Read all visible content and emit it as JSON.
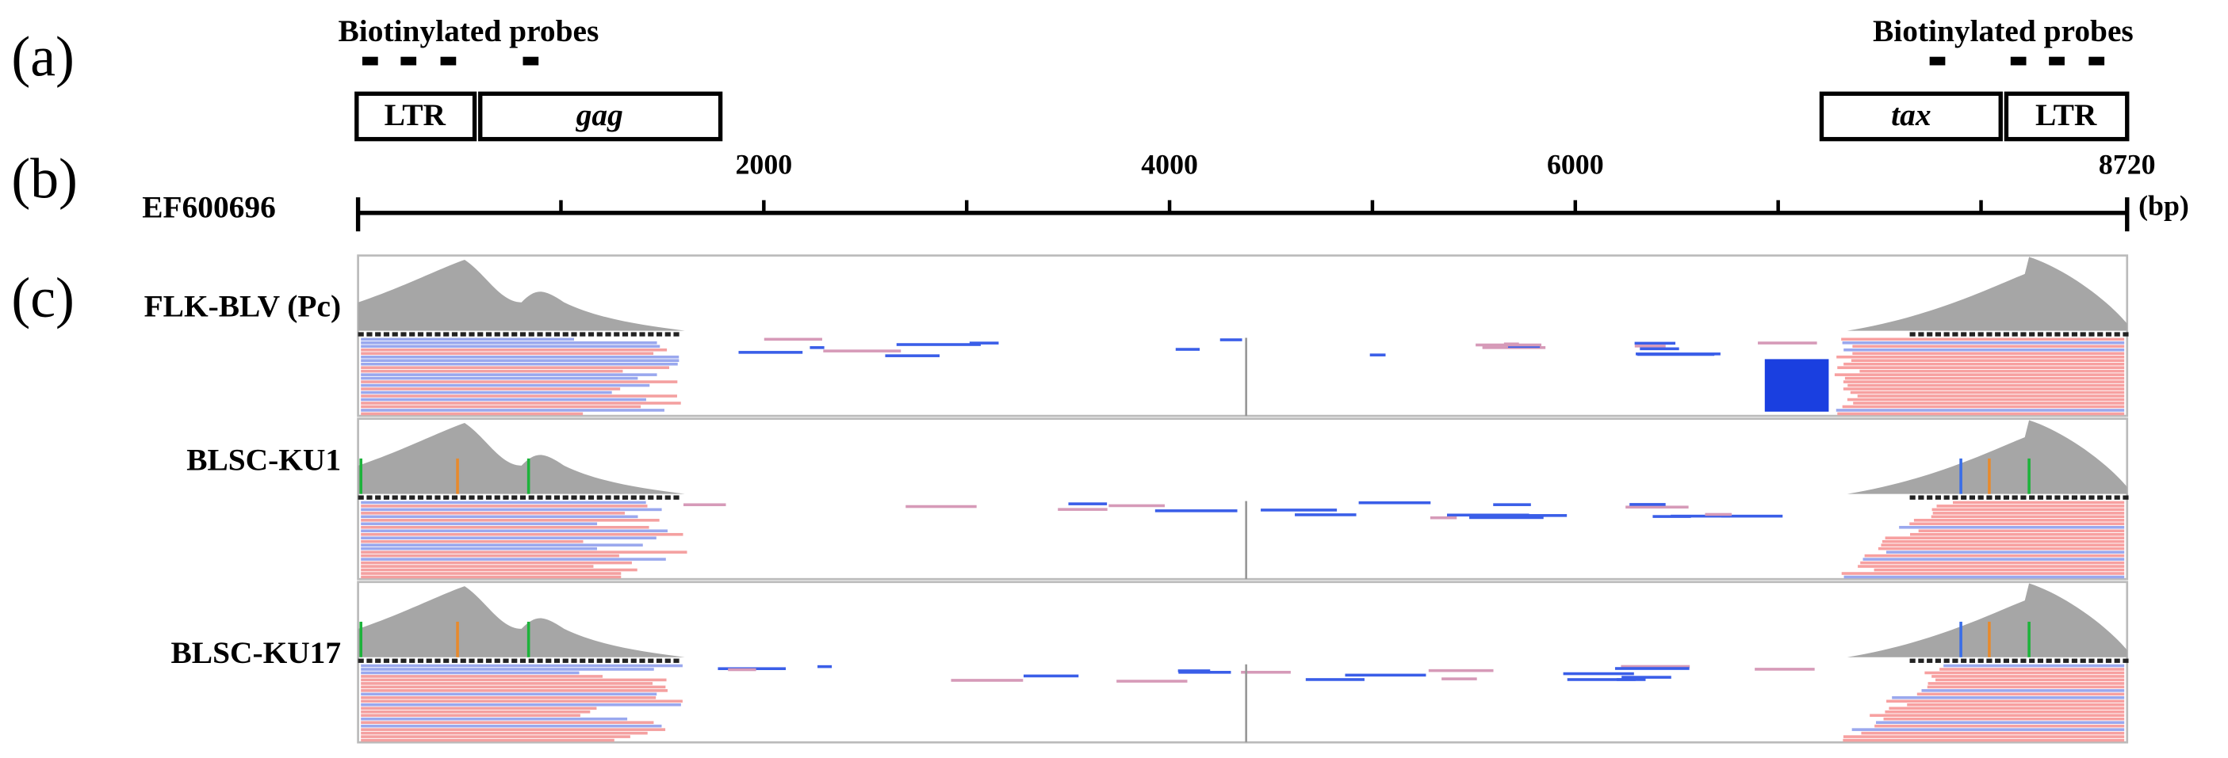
{
  "panels": {
    "a": "(a)",
    "b": "(b)",
    "c": "(c)"
  },
  "probes": {
    "left": "Biotinylated probes",
    "right": "Biotinylated probes"
  },
  "genes": [
    "LTR",
    "gag",
    "tax",
    "LTR"
  ],
  "scale": {
    "name": "EF600696",
    "labels": [
      2000,
      4000,
      6000,
      8720
    ],
    "unit": "(bp)"
  },
  "tracks": [
    "FLK-BLV (Pc)",
    "BLSC-KU1",
    "BLSC-KU17"
  ]
}
